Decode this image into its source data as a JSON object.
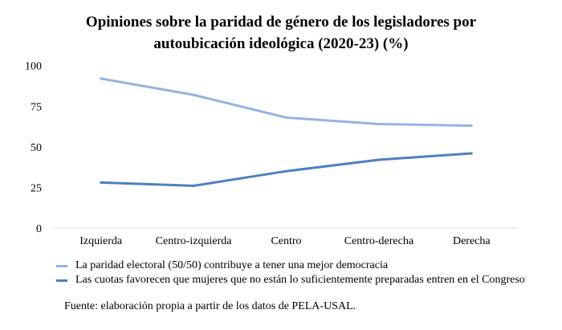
{
  "chart_data": {
    "type": "line",
    "title": "Opiniones sobre la paridad de género de los legisladores por autoubicación ideológica (2020-23) (%)",
    "title_lines": [
      "Opiniones sobre la paridad de género de los legisladores por",
      "autoubicación ideológica (2020-23) (%)"
    ],
    "categories": [
      "Izquierda",
      "Centro-izquierda",
      "Centro",
      "Centro-derecha",
      "Derecha"
    ],
    "yticks": [
      0,
      25,
      50,
      75,
      100
    ],
    "ylim": [
      0,
      100
    ],
    "grid": false,
    "legend_position": "bottom",
    "series": [
      {
        "name": "La paridad electoral (50/50) contribuye a tener una mejor democracia",
        "values": [
          92,
          82,
          68,
          64,
          63
        ],
        "color": "#95b3de"
      },
      {
        "name": "Las cuotas favorecen que mujeres que no están lo suficientemente preparadas entren en el Congreso",
        "values": [
          28,
          26,
          35,
          42,
          46
        ],
        "color": "#4f7fbf"
      }
    ],
    "source": "Fuente: elaboración propia a partir de los datos de PELA-USAL."
  }
}
